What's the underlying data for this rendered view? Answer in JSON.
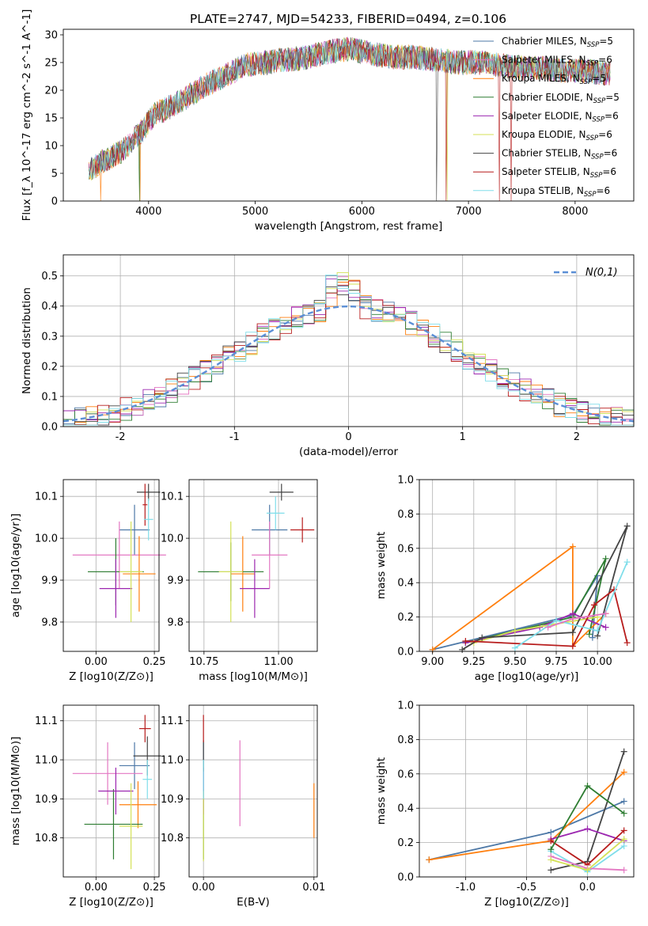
{
  "figure": {
    "title": "PLATE=2747, MJD=54233, FIBERID=0494, z=0.106"
  },
  "chart_data": [
    {
      "id": "spectrum",
      "type": "line",
      "xlabel": "wavelength [Angstrom, rest frame]",
      "ylabel": "Flux [f_λ 10^-17 erg cm^-2 s^-1 A^-1]",
      "xlim": [
        3200,
        8550
      ],
      "ylim": [
        0,
        31
      ],
      "xticks": [
        4000,
        5000,
        6000,
        7000,
        8000
      ],
      "yticks": [
        0,
        5,
        10,
        15,
        20,
        25,
        30
      ],
      "grid": false,
      "legend_position": "top-right",
      "profile": {
        "x": [
          3450,
          3550,
          3650,
          3750,
          3850,
          3950,
          4050,
          4150,
          4300,
          4500,
          4700,
          4900,
          5100,
          5300,
          5500,
          5700,
          5900,
          6100,
          6300,
          6500,
          6700,
          6900,
          7100,
          7300,
          7500,
          7700,
          7900,
          8100,
          8300
        ],
        "y": [
          5.5,
          7,
          8,
          9,
          11,
          13,
          15.5,
          16.5,
          18,
          20.5,
          22.5,
          24.5,
          25,
          25.5,
          26,
          27,
          27.5,
          26.5,
          26,
          26,
          25.5,
          25,
          25,
          24.5,
          24,
          24,
          23.5,
          23.5,
          23
        ]
      },
      "series": [
        {
          "name": "Chabrier MILES, N_SSP=5",
          "color": "#4e79a7"
        },
        {
          "name": "Salpeter MILES, N_SSP=6",
          "color": "#e377c2"
        },
        {
          "name": "Kroupa MILES, N_SSP=5",
          "color": "#ff7f0e"
        },
        {
          "name": "Chabrier ELODIE, N_SSP=5",
          "color": "#2e7d32"
        },
        {
          "name": "Salpeter ELODIE, N_SSP=6",
          "color": "#9c27b0"
        },
        {
          "name": "Kroupa ELODIE, N_SSP=6",
          "color": "#d4e157"
        },
        {
          "name": "Chabrier STELIB, N_SSP=6",
          "color": "#444444"
        },
        {
          "name": "Salpeter STELIB, N_SSP=6",
          "color": "#b71c1c"
        },
        {
          "name": "Kroupa STELIB, N_SSP=6",
          "color": "#80deea"
        }
      ]
    },
    {
      "id": "residuals",
      "type": "histogram",
      "xlabel": "(data-model)/error",
      "ylabel": "Normed distribution",
      "xlim": [
        -2.5,
        2.5
      ],
      "ylim": [
        0,
        0.57
      ],
      "xticks": [
        -2,
        -1,
        0,
        1,
        2
      ],
      "yticks": [
        0.0,
        0.1,
        0.2,
        0.3,
        0.4,
        0.5
      ],
      "grid": true,
      "legend_entry": "N(0,1)",
      "legend_position": "top-right"
    },
    {
      "id": "age-vs-Z",
      "type": "scatter",
      "xlabel": "Z [log10(Z/Z⊙)]",
      "ylabel": "age [log10(age/yr)]",
      "xlim": [
        -0.14,
        0.27
      ],
      "ylim": [
        9.73,
        10.14
      ],
      "xticks": [
        0.0,
        0.25
      ],
      "yticks": [
        9.8,
        9.9,
        10.0,
        10.1
      ],
      "grid": true,
      "points": [
        {
          "x": 0.165,
          "y": 10.02,
          "xerr": 0.065,
          "yerr": 0.06,
          "c": 0
        },
        {
          "x": 0.1,
          "y": 9.96,
          "xerr": 0.2,
          "yerr": 0.08,
          "c": 1
        },
        {
          "x": 0.185,
          "y": 9.915,
          "xerr": 0.07,
          "yerr": 0.09,
          "c": 2
        },
        {
          "x": 0.085,
          "y": 9.92,
          "xerr": 0.12,
          "yerr": 0.08,
          "c": 3
        },
        {
          "x": 0.085,
          "y": 9.88,
          "xerr": 0.07,
          "yerr": 0.07,
          "c": 4
        },
        {
          "x": 0.15,
          "y": 9.92,
          "xerr": 0.05,
          "yerr": 0.12,
          "c": 5
        },
        {
          "x": 0.225,
          "y": 10.11,
          "xerr": 0.05,
          "yerr": 0.02,
          "c": 6
        },
        {
          "x": 0.21,
          "y": 10.08,
          "xerr": 0.01,
          "yerr": 0.05,
          "c": 7
        },
        {
          "x": 0.225,
          "y": 10.045,
          "xerr": 0.02,
          "yerr": 0.05,
          "c": 8
        }
      ]
    },
    {
      "id": "age-vs-mass",
      "type": "scatter",
      "xlabel": "mass [log10(M/M⊙)]",
      "xlim": [
        10.7,
        11.13
      ],
      "ylim": [
        9.73,
        10.14
      ],
      "xticks": [
        10.75,
        11.0
      ],
      "yticks": [
        9.8,
        9.9,
        10.0,
        10.1
      ],
      "grid": true,
      "points": [
        {
          "x": 10.97,
          "y": 10.02,
          "xerr": 0.06,
          "yerr": 0.06,
          "c": 0
        },
        {
          "x": 10.97,
          "y": 9.96,
          "xerr": 0.06,
          "yerr": 0.08,
          "c": 1
        },
        {
          "x": 10.88,
          "y": 9.915,
          "xerr": 0.04,
          "yerr": 0.09,
          "c": 2
        },
        {
          "x": 10.84,
          "y": 9.92,
          "xerr": 0.11,
          "yerr": 0.07,
          "c": 3
        },
        {
          "x": 10.92,
          "y": 9.88,
          "xerr": 0.05,
          "yerr": 0.07,
          "c": 4
        },
        {
          "x": 10.84,
          "y": 9.92,
          "xerr": 0.04,
          "yerr": 0.12,
          "c": 5
        },
        {
          "x": 11.01,
          "y": 10.11,
          "xerr": 0.04,
          "yerr": 0.02,
          "c": 6
        },
        {
          "x": 11.08,
          "y": 10.02,
          "xerr": 0.04,
          "yerr": 0.03,
          "c": 7
        },
        {
          "x": 10.99,
          "y": 10.06,
          "xerr": 0.03,
          "yerr": 0.04,
          "c": 8
        }
      ]
    },
    {
      "id": "weight-vs-age",
      "type": "line",
      "xlabel": "age [log10(age/yr)]",
      "ylabel": "mass weight",
      "xlim": [
        8.92,
        10.22
      ],
      "ylim": [
        0,
        1
      ],
      "xticks": [
        9.0,
        9.25,
        9.5,
        9.75,
        10.0
      ],
      "yticks": [
        0.0,
        0.2,
        0.4,
        0.6,
        0.8,
        1.0
      ],
      "grid": true,
      "series": [
        {
          "c": 0,
          "x": [
            9.0,
            9.85,
            10.0,
            9.97
          ],
          "y": [
            0.01,
            0.21,
            0.44,
            0.08
          ]
        },
        {
          "c": 2,
          "x": [
            9.0,
            9.85,
            9.85,
            10.05
          ],
          "y": [
            0.01,
            0.61,
            0.03,
            0.22
          ]
        },
        {
          "c": 3,
          "x": [
            9.2,
            9.85,
            10.05,
            9.95
          ],
          "y": [
            0.05,
            0.2,
            0.54,
            0.1
          ]
        },
        {
          "c": 4,
          "x": [
            9.2,
            9.65,
            9.85,
            10.05
          ],
          "y": [
            0.05,
            0.14,
            0.22,
            0.14
          ]
        },
        {
          "c": 5,
          "x": [
            9.25,
            9.5,
            9.75,
            10.0
          ],
          "y": [
            0.05,
            0.12,
            0.16,
            0.2
          ]
        },
        {
          "c": 6,
          "x": [
            9.18,
            9.3,
            9.85,
            10.18,
            10.0
          ],
          "y": [
            0.01,
            0.08,
            0.11,
            0.73,
            0.09
          ]
        },
        {
          "c": 7,
          "x": [
            9.2,
            9.85,
            9.98,
            10.1,
            10.18
          ],
          "y": [
            0.06,
            0.03,
            0.27,
            0.36,
            0.05
          ]
        },
        {
          "c": 8,
          "x": [
            9.5,
            9.75,
            10.0,
            10.18
          ],
          "y": [
            0.02,
            0.18,
            0.12,
            0.52
          ]
        },
        {
          "c": 1,
          "x": [
            9.7,
            9.85,
            10.05
          ],
          "y": [
            0.14,
            0.19,
            0.22
          ]
        }
      ]
    },
    {
      "id": "mass-vs-Z",
      "type": "scatter",
      "xlabel": "Z [log10(Z/Z⊙)]",
      "ylabel": "mass [log10(M/M⊙)]",
      "xlim": [
        -0.14,
        0.27
      ],
      "ylim": [
        10.7,
        11.14
      ],
      "xticks": [
        0.0,
        0.25
      ],
      "yticks": [
        10.8,
        10.9,
        11.0,
        11.1
      ],
      "grid": true,
      "points": [
        {
          "x": 0.165,
          "y": 10.985,
          "xerr": 0.065,
          "yerr": 0.06,
          "c": 0
        },
        {
          "x": 0.05,
          "y": 10.965,
          "xerr": 0.15,
          "yerr": 0.08,
          "c": 1
        },
        {
          "x": 0.18,
          "y": 10.885,
          "xerr": 0.08,
          "yerr": 0.06,
          "c": 2
        },
        {
          "x": 0.075,
          "y": 10.835,
          "xerr": 0.125,
          "yerr": 0.09,
          "c": 3
        },
        {
          "x": 0.085,
          "y": 10.92,
          "xerr": 0.075,
          "yerr": 0.06,
          "c": 4
        },
        {
          "x": 0.15,
          "y": 10.83,
          "xerr": 0.05,
          "yerr": 0.11,
          "c": 5
        },
        {
          "x": 0.22,
          "y": 11.01,
          "xerr": 0.06,
          "yerr": 0.05,
          "c": 6
        },
        {
          "x": 0.21,
          "y": 11.08,
          "xerr": 0.025,
          "yerr": 0.035,
          "c": 7
        },
        {
          "x": 0.22,
          "y": 10.95,
          "xerr": 0.02,
          "yerr": 0.05,
          "c": 8
        }
      ]
    },
    {
      "id": "mass-vs-ebv",
      "type": "scatter",
      "xlabel": "E(B-V)",
      "xlim": [
        -0.0013,
        0.0103
      ],
      "ylim": [
        10.7,
        11.14
      ],
      "xticks": [
        0.0,
        0.01
      ],
      "yticks": [
        10.8,
        10.9,
        11.0,
        11.1
      ],
      "grid": true,
      "points": [
        {
          "x": 0.0,
          "y": 10.985,
          "xerr": 0,
          "yerr": 0.06,
          "c": 0
        },
        {
          "x": 0.0033,
          "y": 10.94,
          "xerr": 0,
          "yerr": 0.11,
          "c": 1
        },
        {
          "x": 0.01,
          "y": 10.87,
          "xerr": 0,
          "yerr": 0.07,
          "c": 2
        },
        {
          "x": 0.0,
          "y": 10.835,
          "xerr": 0,
          "yerr": 0.09,
          "c": 3
        },
        {
          "x": 0.0,
          "y": 10.92,
          "xerr": 0,
          "yerr": 0.06,
          "c": 4
        },
        {
          "x": 0.0,
          "y": 10.83,
          "xerr": 0,
          "yerr": 0.09,
          "c": 5
        },
        {
          "x": 0.0,
          "y": 11.01,
          "xerr": 0,
          "yerr": 0.04,
          "c": 6
        },
        {
          "x": 0.0,
          "y": 11.08,
          "xerr": 0,
          "yerr": 0.035,
          "c": 7
        },
        {
          "x": 0.0,
          "y": 10.95,
          "xerr": 0,
          "yerr": 0.05,
          "c": 8
        }
      ]
    },
    {
      "id": "weight-vs-Z",
      "type": "line",
      "xlabel": "Z [log10(Z/Z⊙)]",
      "ylabel": "mass weight",
      "xlim": [
        -1.38,
        0.38
      ],
      "ylim": [
        0,
        1
      ],
      "xticks": [
        -1.0,
        -0.5,
        0.0
      ],
      "yticks": [
        0.0,
        0.2,
        0.4,
        0.6,
        0.8,
        1.0
      ],
      "grid": true,
      "series": [
        {
          "c": 0,
          "x": [
            -1.3,
            -0.3,
            0.3
          ],
          "y": [
            0.1,
            0.26,
            0.44
          ]
        },
        {
          "c": 2,
          "x": [
            -1.3,
            -0.3,
            0.3
          ],
          "y": [
            0.1,
            0.21,
            0.61
          ]
        },
        {
          "c": 6,
          "x": [
            -0.3,
            0.0,
            0.3
          ],
          "y": [
            0.04,
            0.09,
            0.73
          ]
        },
        {
          "c": 4,
          "x": [
            -0.3,
            0.0,
            0.3
          ],
          "y": [
            0.22,
            0.28,
            0.21
          ]
        },
        {
          "c": 7,
          "x": [
            -0.3,
            0.0,
            0.3
          ],
          "y": [
            0.21,
            0.07,
            0.27
          ]
        },
        {
          "c": 8,
          "x": [
            -0.3,
            0.0,
            0.3
          ],
          "y": [
            0.15,
            0.03,
            0.18
          ]
        },
        {
          "c": 1,
          "x": [
            -0.3,
            0.0,
            0.3
          ],
          "y": [
            0.12,
            0.05,
            0.04
          ]
        },
        {
          "c": 5,
          "x": [
            -0.3,
            0.0,
            0.3
          ],
          "y": [
            0.1,
            0.04,
            0.22
          ]
        },
        {
          "c": 3,
          "x": [
            -0.3,
            0.0,
            0.3
          ],
          "y": [
            0.16,
            0.53,
            0.37
          ]
        }
      ]
    }
  ]
}
